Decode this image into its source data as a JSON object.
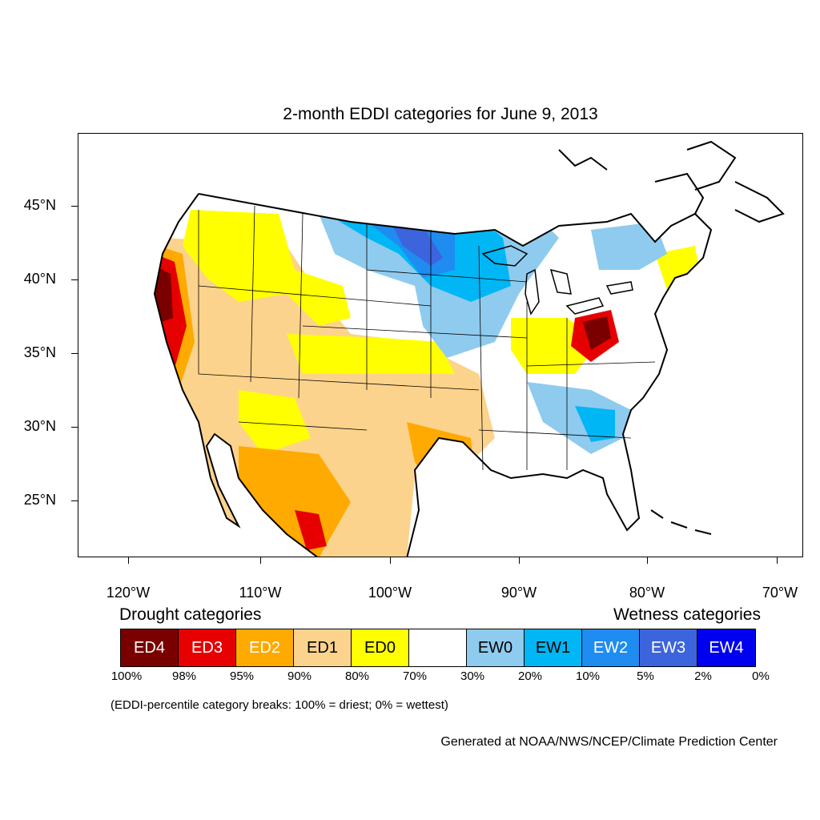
{
  "title": "2-month EDDI categories for June 9, 2013",
  "lat_labels": [
    "45°N",
    "40°N",
    "35°N",
    "30°N",
    "25°N"
  ],
  "lon_labels": [
    "120°W",
    "110°W",
    "100°W",
    "90°W",
    "80°W",
    "70°W"
  ],
  "legend": {
    "drought_heading": "Drought categories",
    "wetness_heading": "Wetness categories",
    "categories": [
      {
        "label": "ED4",
        "color": "#7a0000",
        "text_color": "#ffffff"
      },
      {
        "label": "ED3",
        "color": "#e60000",
        "text_color": "#ffffff"
      },
      {
        "label": "ED2",
        "color": "#ffaa00",
        "text_color": "#ffffff"
      },
      {
        "label": "ED1",
        "color": "#fcd38c",
        "text_color": "#000000"
      },
      {
        "label": "ED0",
        "color": "#ffff00",
        "text_color": "#000000"
      },
      {
        "label": "",
        "color": "#ffffff",
        "text_color": "#000000"
      },
      {
        "label": "EW0",
        "color": "#8fcbee",
        "text_color": "#000000"
      },
      {
        "label": "EW1",
        "color": "#00b6f5",
        "text_color": "#000000"
      },
      {
        "label": "EW2",
        "color": "#1e8cf0",
        "text_color": "#ffffff"
      },
      {
        "label": "EW3",
        "color": "#3c64dc",
        "text_color": "#ffffff"
      },
      {
        "label": "EW4",
        "color": "#0000f0",
        "text_color": "#ffffff"
      }
    ],
    "percentiles": [
      "100%",
      "98%",
      "95%",
      "90%",
      "80%",
      "70%",
      "30%",
      "20%",
      "10%",
      "5%",
      "2%",
      "0%"
    ]
  },
  "note": "(EDDI-percentile category breaks: 100% = driest; 0% = wettest)",
  "credit": "Generated at NOAA/NWS/NCEP/Climate Prediction Center"
}
